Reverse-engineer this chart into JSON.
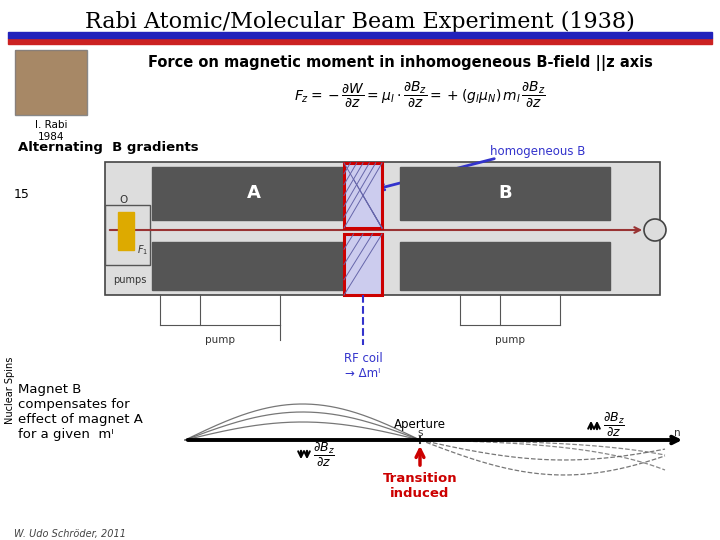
{
  "title": "Rabi Atomic/Molecular Beam Experiment (1938)",
  "subtitle": "Force on magnetic moment in inhomogeneous B-field ||z axis",
  "formula": "$F_z = -\\dfrac{\\partial W}{\\partial z} = \\mu_I \\cdot \\dfrac{\\partial B_z}{\\partial z} = +(g_I\\mu_N)\\,m_I\\,\\dfrac{\\partial B_z}{\\partial z}$",
  "rabi_label": "I. Rabi\n1984",
  "slide_number": "15",
  "side_label": "Nuclear Spins",
  "alt_b_gradients": "Alternating  B gradients",
  "homogeneous_b": "homogeneous B",
  "rf_coil_label": "RF coil\n→ Δmᴵ",
  "aperture": "Aperture",
  "magnet_text1": "Magnet B",
  "magnet_text2": "compensates for",
  "magnet_text3": "effect of magnet A",
  "magnet_text4": "for a given  mᴵ",
  "transition": "Transition\ninduced",
  "footer": "W. Udo Schröder, 2011",
  "title_color": "#000000",
  "transition_color": "#cc0000",
  "homogeneous_color": "#3333cc",
  "rf_color": "#3333cc",
  "bg_color": "#ffffff",
  "title_fontsize": 16,
  "subtitle_fontsize": 10.5
}
